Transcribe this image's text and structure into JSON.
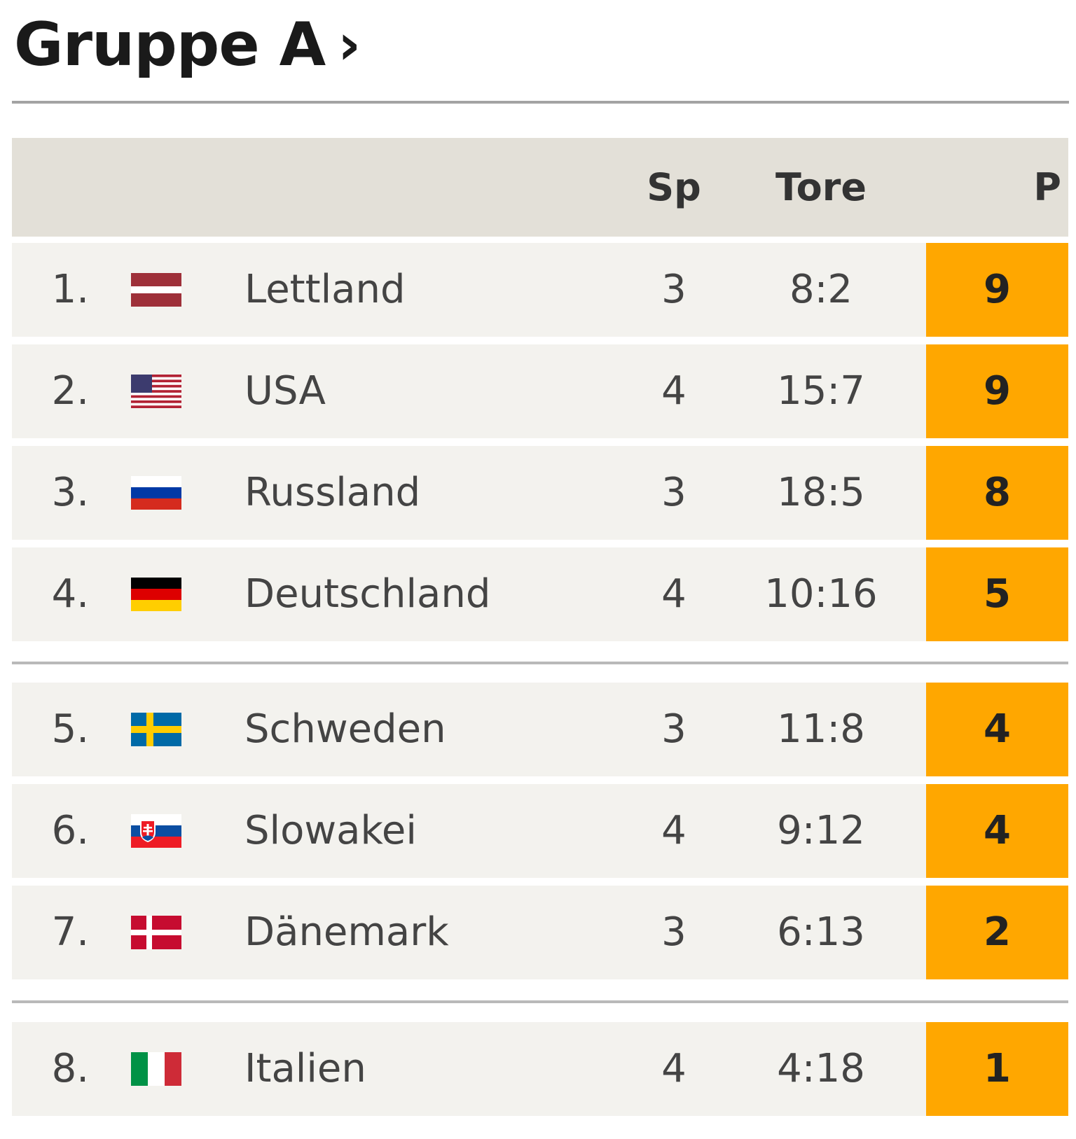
{
  "title": "Gruppe A",
  "title_chevron": "›",
  "header": {
    "sp": "Sp",
    "tore": "Tore",
    "p": "P"
  },
  "accent_color": "#ffa700",
  "rows": [
    {
      "rank": "1.",
      "team": "Lettland",
      "flag": "latvia-flag-icon",
      "sp": "3",
      "tore": "8:2",
      "p": "9"
    },
    {
      "rank": "2.",
      "team": "USA",
      "flag": "usa-flag-icon",
      "sp": "4",
      "tore": "15:7",
      "p": "9"
    },
    {
      "rank": "3.",
      "team": "Russland",
      "flag": "russia-flag-icon",
      "sp": "3",
      "tore": "18:5",
      "p": "8"
    },
    {
      "rank": "4.",
      "team": "Deutschland",
      "flag": "germany-flag-icon",
      "sp": "4",
      "tore": "10:16",
      "p": "5"
    },
    {
      "rank": "5.",
      "team": "Schweden",
      "flag": "sweden-flag-icon",
      "sp": "3",
      "tore": "11:8",
      "p": "4"
    },
    {
      "rank": "6.",
      "team": "Slowakei",
      "flag": "slovakia-flag-icon",
      "sp": "4",
      "tore": "9:12",
      "p": "4"
    },
    {
      "rank": "7.",
      "team": "Dänemark",
      "flag": "denmark-flag-icon",
      "sp": "3",
      "tore": "6:13",
      "p": "2"
    },
    {
      "rank": "8.",
      "team": "Italien",
      "flag": "italy-flag-icon",
      "sp": "4",
      "tore": "4:18",
      "p": "1"
    }
  ]
}
